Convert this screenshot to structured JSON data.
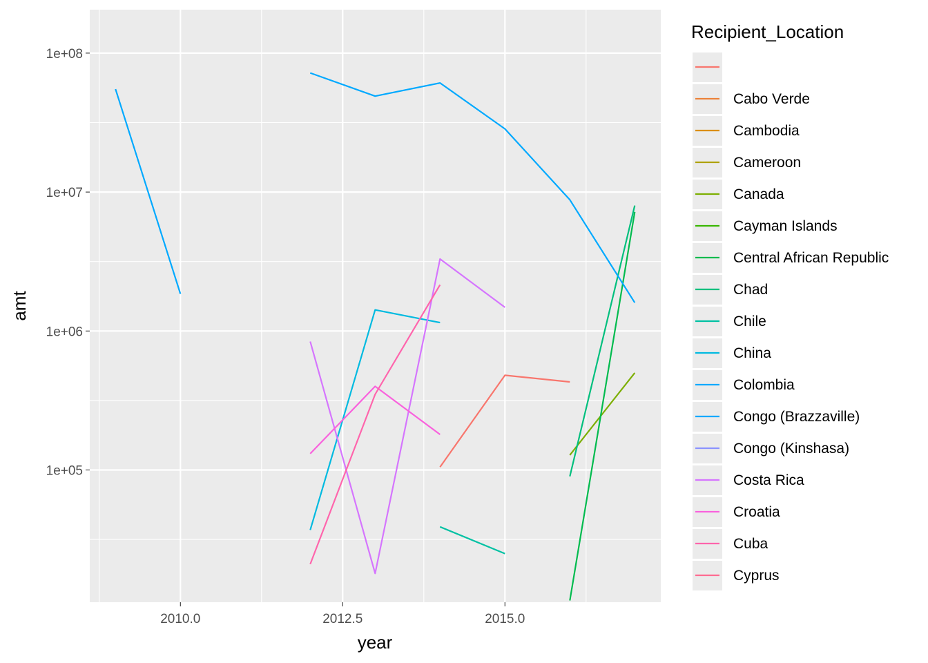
{
  "chart_data": {
    "type": "line",
    "xlabel": "year",
    "ylabel": "amt",
    "y_scale": "log10",
    "xlim": [
      2008.75,
      2017.55
    ],
    "ylim": [
      11500,
      200000000
    ],
    "x_ticks": [
      2010,
      2012.5,
      2015
    ],
    "x_tick_labels": [
      "2010.0",
      "2012.5",
      "2015.0"
    ],
    "y_ticks": [
      100000,
      1000000,
      10000000,
      100000000
    ],
    "y_tick_labels": [
      "1e+05",
      "1e+06",
      "1e+07",
      "1e+08"
    ],
    "grid": true,
    "legend": {
      "title": "Recipient_Location",
      "position": "right"
    },
    "series": [
      {
        "name": "",
        "color": "#F8766D",
        "points": [
          [
            2014,
            105000
          ],
          [
            2015,
            480000
          ],
          [
            2016,
            430000
          ]
        ]
      },
      {
        "name": "Cabo Verde",
        "color": "#EC8239",
        "points": []
      },
      {
        "name": "Cambodia",
        "color": "#DB8E00",
        "points": []
      },
      {
        "name": "Cameroon",
        "color": "#AEA200",
        "points": []
      },
      {
        "name": "Canada",
        "color": "#7CAE00",
        "points": [
          [
            2016,
            128000
          ],
          [
            2017,
            500000
          ]
        ]
      },
      {
        "name": "Cayman Islands",
        "color": "#39B600",
        "points": []
      },
      {
        "name": "Central African Republic",
        "color": "#00BB4E",
        "points": [
          [
            2016,
            11500
          ],
          [
            2017,
            7200000
          ]
        ]
      },
      {
        "name": "Chad",
        "color": "#00BF7D",
        "points": [
          [
            2016,
            90000
          ],
          [
            2017,
            8000000
          ]
        ]
      },
      {
        "name": "Chile",
        "color": "#00C1A3",
        "points": [
          [
            2014,
            39000
          ],
          [
            2015,
            25000
          ]
        ]
      },
      {
        "name": "China",
        "color": "#00BAE0",
        "points": [
          [
            2012,
            37000
          ],
          [
            2013,
            1420000
          ],
          [
            2014,
            1150000
          ]
        ]
      },
      {
        "name": "Colombia",
        "color": "#00A9FF",
        "points": [
          [
            2009,
            55000000
          ],
          [
            2010,
            1850000
          ]
        ]
      },
      {
        "name": "Congo (Brazzaville)",
        "color": "#00A9FF",
        "points": [
          [
            2012,
            72000000
          ],
          [
            2013,
            49000000
          ],
          [
            2014,
            61000000
          ],
          [
            2015,
            28500000
          ],
          [
            2016,
            8800000
          ],
          [
            2017,
            1600000
          ]
        ]
      },
      {
        "name": "Congo (Kinshasa)",
        "color": "#8B93FF",
        "points": []
      },
      {
        "name": "Costa Rica",
        "color": "#D575FE",
        "points": [
          [
            2012,
            840000
          ],
          [
            2013,
            18000
          ],
          [
            2014,
            3300000
          ],
          [
            2015,
            1480000
          ]
        ]
      },
      {
        "name": "Croatia",
        "color": "#F962DD",
        "points": [
          [
            2012,
            131000
          ],
          [
            2013,
            400000
          ],
          [
            2014,
            180000
          ]
        ]
      },
      {
        "name": "Cuba",
        "color": "#FF65AC",
        "points": [
          [
            2012,
            21000
          ],
          [
            2013,
            350000
          ],
          [
            2014,
            2150000
          ]
        ]
      },
      {
        "name": "Cyprus",
        "color": "#FF6C91",
        "points": []
      }
    ]
  }
}
